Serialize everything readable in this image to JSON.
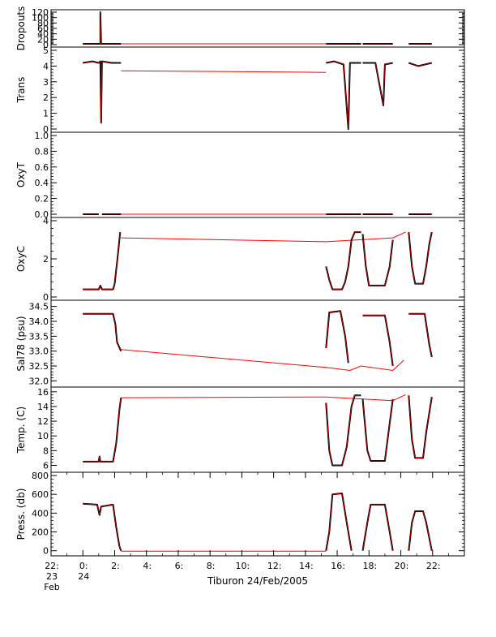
{
  "title": "Tiburon 24/Feb/2005",
  "colors": {
    "trace": "#000000",
    "connector": "#ff0000",
    "frame": "#000000"
  },
  "chart_data": [
    {
      "type": "line",
      "ylabel": "Dropouts",
      "ylim": [
        0,
        120
      ],
      "yticks": [
        {
          "v": 0,
          "t": "0"
        },
        {
          "v": 20,
          "t": "20"
        },
        {
          "v": 40,
          "t": "40"
        },
        {
          "v": 60,
          "t": "60"
        },
        {
          "v": 80,
          "t": "80"
        },
        {
          "v": 100,
          "t": "100"
        },
        {
          "v": 120,
          "t": "120"
        }
      ],
      "series": [
        {
          "segments": [
            [
              [
                0.0,
                3
              ],
              [
                1.1,
                3
              ],
              [
                1.1,
                120
              ],
              [
                1.15,
                3
              ],
              [
                2.4,
                3
              ]
            ],
            [
              [
                15.3,
                3
              ],
              [
                17.5,
                3
              ]
            ],
            [
              [
                17.6,
                3
              ],
              [
                19.5,
                3
              ]
            ],
            [
              [
                20.5,
                3
              ],
              [
                21.95,
                3
              ]
            ]
          ]
        }
      ],
      "connectors": [
        [
          2.4,
          3
        ],
        [
          15.3,
          3
        ]
      ]
    },
    {
      "type": "line",
      "ylabel": "Trans",
      "ylim": [
        0,
        5
      ],
      "yticks": [
        {
          "v": 0,
          "t": "0"
        },
        {
          "v": 1,
          "t": "1"
        },
        {
          "v": 2,
          "t": "2"
        },
        {
          "v": 3,
          "t": "3"
        },
        {
          "v": 4,
          "t": "4"
        },
        {
          "v": 5,
          "t": "5"
        }
      ],
      "series": [
        {
          "segments": [
            [
              [
                0.0,
                4.2
              ],
              [
                0.6,
                4.3
              ],
              [
                1.0,
                4.2
              ],
              [
                1.1,
                4.3
              ],
              [
                1.15,
                0.4
              ],
              [
                1.2,
                4.3
              ],
              [
                1.8,
                4.2
              ],
              [
                2.4,
                4.2
              ]
            ],
            [
              [
                15.3,
                4.2
              ],
              [
                15.8,
                4.3
              ],
              [
                16.4,
                4.1
              ],
              [
                16.7,
                0.0
              ],
              [
                16.8,
                4.2
              ],
              [
                17.5,
                4.2
              ]
            ],
            [
              [
                17.6,
                4.2
              ],
              [
                18.4,
                4.2
              ],
              [
                18.9,
                1.5
              ],
              [
                19.0,
                4.1
              ],
              [
                19.5,
                4.2
              ]
            ],
            [
              [
                20.5,
                4.2
              ],
              [
                21.1,
                4.0
              ],
              [
                21.95,
                4.2
              ]
            ]
          ]
        }
      ],
      "connectors": [
        [
          2.4,
          3.7
        ],
        [
          15.3,
          3.6
        ]
      ]
    },
    {
      "type": "line",
      "ylabel": "OxyT",
      "ylim": [
        0,
        1
      ],
      "yticks": [
        {
          "v": 0,
          "t": "0.0"
        },
        {
          "v": 0.2,
          "t": "0.2"
        },
        {
          "v": 0.4,
          "t": "0.4"
        },
        {
          "v": 0.6,
          "t": "0.6"
        },
        {
          "v": 0.8,
          "t": "0.8"
        },
        {
          "v": 1.0,
          "t": "1.0"
        }
      ],
      "series": [
        {
          "segments": [
            [
              [
                0.0,
                0.0
              ],
              [
                1.0,
                0.0
              ]
            ],
            [
              [
                1.2,
                0.0
              ],
              [
                2.4,
                0.0
              ]
            ],
            [
              [
                15.3,
                0.0
              ],
              [
                17.5,
                0.0
              ]
            ],
            [
              [
                17.6,
                0.0
              ],
              [
                19.5,
                0.0
              ]
            ],
            [
              [
                20.5,
                0.0
              ],
              [
                21.95,
                0.0
              ]
            ]
          ]
        }
      ],
      "connectors": [
        [
          2.4,
          0.0
        ],
        [
          15.3,
          0.0
        ]
      ]
    },
    {
      "type": "line",
      "ylabel": "OxyC",
      "ylim": [
        0,
        4
      ],
      "yticks": [
        {
          "v": 0,
          "t": "0"
        },
        {
          "v": 2,
          "t": "2"
        },
        {
          "v": 4,
          "t": "4"
        }
      ],
      "series": [
        {
          "segments": [
            [
              [
                0.0,
                0.4
              ],
              [
                1.0,
                0.4
              ],
              [
                1.1,
                0.6
              ],
              [
                1.2,
                0.4
              ],
              [
                1.9,
                0.4
              ],
              [
                2.0,
                0.7
              ],
              [
                2.2,
                2.2
              ],
              [
                2.35,
                3.4
              ]
            ],
            [
              [
                15.3,
                1.6
              ],
              [
                15.5,
                0.9
              ],
              [
                15.7,
                0.4
              ],
              [
                16.3,
                0.4
              ],
              [
                16.5,
                0.8
              ],
              [
                16.7,
                1.6
              ],
              [
                16.9,
                3.0
              ],
              [
                17.1,
                3.4
              ],
              [
                17.5,
                3.4
              ]
            ],
            [
              [
                17.6,
                3.3
              ],
              [
                17.8,
                1.6
              ],
              [
                18.0,
                0.6
              ],
              [
                19.0,
                0.6
              ],
              [
                19.3,
                1.6
              ],
              [
                19.5,
                3.0
              ]
            ],
            [
              [
                20.5,
                3.4
              ],
              [
                20.7,
                1.6
              ],
              [
                20.9,
                0.7
              ],
              [
                21.4,
                0.7
              ],
              [
                21.6,
                1.6
              ],
              [
                21.8,
                2.8
              ],
              [
                21.95,
                3.4
              ]
            ]
          ]
        }
      ],
      "connectors": [
        [
          2.4,
          3.1
        ],
        [
          15.3,
          2.9
        ],
        [
          19.5,
          3.1
        ],
        [
          20.3,
          3.4
        ]
      ]
    },
    {
      "type": "line",
      "ylabel": "Sal78 (psu)",
      "ylim": [
        31.9,
        34.6
      ],
      "yticks": [
        {
          "v": 32.0,
          "t": "32.0"
        },
        {
          "v": 32.5,
          "t": "32.5"
        },
        {
          "v": 33.0,
          "t": "33.0"
        },
        {
          "v": 33.5,
          "t": "33.5"
        },
        {
          "v": 34.0,
          "t": "34.0"
        },
        {
          "v": 34.5,
          "t": "34.5"
        }
      ],
      "series": [
        {
          "segments": [
            [
              [
                0.0,
                34.25
              ],
              [
                1.9,
                34.25
              ],
              [
                2.05,
                33.9
              ],
              [
                2.15,
                33.3
              ],
              [
                2.4,
                33.0
              ]
            ],
            [
              [
                15.3,
                33.1
              ],
              [
                15.5,
                34.3
              ],
              [
                16.2,
                34.35
              ],
              [
                16.5,
                33.5
              ],
              [
                16.7,
                32.6
              ]
            ],
            [
              [
                17.6,
                34.2
              ],
              [
                19.0,
                34.2
              ],
              [
                19.3,
                33.3
              ],
              [
                19.5,
                32.5
              ]
            ],
            [
              [
                20.5,
                34.25
              ],
              [
                21.5,
                34.25
              ],
              [
                21.8,
                33.2
              ],
              [
                21.95,
                32.8
              ]
            ]
          ]
        }
      ],
      "connectors": [
        [
          2.4,
          33.05
        ],
        [
          15.3,
          32.45
        ],
        [
          16.8,
          32.35
        ],
        [
          17.5,
          32.5
        ],
        [
          19.5,
          32.35
        ],
        [
          20.2,
          32.7
        ]
      ]
    },
    {
      "type": "line",
      "ylabel": "Temp. (C)",
      "ylim": [
        5.5,
        16.2
      ],
      "yticks": [
        {
          "v": 6,
          "t": "6"
        },
        {
          "v": 8,
          "t": "8"
        },
        {
          "v": 10,
          "t": "10"
        },
        {
          "v": 12,
          "t": "12"
        },
        {
          "v": 14,
          "t": "14"
        },
        {
          "v": 16,
          "t": "16"
        }
      ],
      "series": [
        {
          "segments": [
            [
              [
                0.0,
                6.5
              ],
              [
                1.0,
                6.5
              ],
              [
                1.05,
                7.2
              ],
              [
                1.1,
                6.5
              ],
              [
                1.9,
                6.5
              ],
              [
                2.1,
                9.0
              ],
              [
                2.3,
                13.5
              ],
              [
                2.4,
                15.2
              ]
            ],
            [
              [
                15.3,
                14.5
              ],
              [
                15.5,
                8.0
              ],
              [
                15.7,
                6.0
              ],
              [
                16.3,
                6.0
              ],
              [
                16.6,
                8.5
              ],
              [
                16.9,
                14.0
              ],
              [
                17.1,
                15.5
              ],
              [
                17.5,
                15.5
              ]
            ],
            [
              [
                17.6,
                15.0
              ],
              [
                17.9,
                8.0
              ],
              [
                18.1,
                6.6
              ],
              [
                19.0,
                6.6
              ],
              [
                19.2,
                10.0
              ],
              [
                19.5,
                15.0
              ]
            ],
            [
              [
                20.5,
                15.5
              ],
              [
                20.7,
                9.5
              ],
              [
                20.9,
                7.0
              ],
              [
                21.4,
                7.0
              ],
              [
                21.6,
                10.5
              ],
              [
                21.95,
                15.3
              ]
            ]
          ]
        }
      ],
      "connectors": [
        [
          2.4,
          15.2
        ],
        [
          15.3,
          15.3
        ],
        [
          19.5,
          14.8
        ],
        [
          20.3,
          15.6
        ]
      ]
    },
    {
      "type": "line",
      "ylabel": "Press. (db)",
      "ylim": [
        -20,
        800
      ],
      "yticks": [
        {
          "v": 0,
          "t": "0"
        },
        {
          "v": 200,
          "t": "200"
        },
        {
          "v": 400,
          "t": "400"
        },
        {
          "v": 600,
          "t": "600"
        },
        {
          "v": 800,
          "t": "800"
        }
      ],
      "series": [
        {
          "segments": [
            [
              [
                0.0,
                500
              ],
              [
                0.9,
                490
              ],
              [
                1.05,
                380
              ],
              [
                1.15,
                470
              ],
              [
                1.9,
                490
              ],
              [
                2.1,
                250
              ],
              [
                2.3,
                50
              ],
              [
                2.4,
                0
              ]
            ],
            [
              [
                15.3,
                0
              ],
              [
                15.5,
                200
              ],
              [
                15.7,
                600
              ],
              [
                16.3,
                610
              ],
              [
                16.6,
                300
              ],
              [
                16.9,
                0
              ]
            ],
            [
              [
                17.6,
                0
              ],
              [
                17.9,
                300
              ],
              [
                18.1,
                490
              ],
              [
                19.0,
                490
              ],
              [
                19.3,
                200
              ],
              [
                19.5,
                0
              ]
            ],
            [
              [
                20.5,
                0
              ],
              [
                20.7,
                300
              ],
              [
                20.9,
                420
              ],
              [
                21.4,
                420
              ],
              [
                21.6,
                300
              ],
              [
                21.95,
                0
              ]
            ]
          ]
        }
      ],
      "connectors": [
        [
          2.4,
          -5
        ],
        [
          15.3,
          -5
        ]
      ]
    }
  ],
  "xaxis": {
    "xlim": [
      -2,
      24
    ],
    "major": [
      {
        "v": -2,
        "lines": [
          "22:",
          "23",
          "Feb"
        ]
      },
      {
        "v": 0,
        "lines": [
          "0:",
          "24",
          ""
        ]
      },
      {
        "v": 2,
        "lines": [
          "2:",
          "",
          ""
        ]
      },
      {
        "v": 4,
        "lines": [
          "4:",
          "",
          ""
        ]
      },
      {
        "v": 6,
        "lines": [
          "6:",
          "",
          ""
        ]
      },
      {
        "v": 8,
        "lines": [
          "8:",
          "",
          ""
        ]
      },
      {
        "v": 10,
        "lines": [
          "10:",
          "",
          ""
        ]
      },
      {
        "v": 12,
        "lines": [
          "12:",
          "",
          ""
        ]
      },
      {
        "v": 14,
        "lines": [
          "14:",
          "",
          ""
        ]
      },
      {
        "v": 16,
        "lines": [
          "16:",
          "",
          ""
        ]
      },
      {
        "v": 18,
        "lines": [
          "18:",
          "",
          ""
        ]
      },
      {
        "v": 20,
        "lines": [
          "20:",
          "",
          ""
        ]
      },
      {
        "v": 22,
        "lines": [
          "22:",
          "",
          ""
        ]
      }
    ]
  }
}
